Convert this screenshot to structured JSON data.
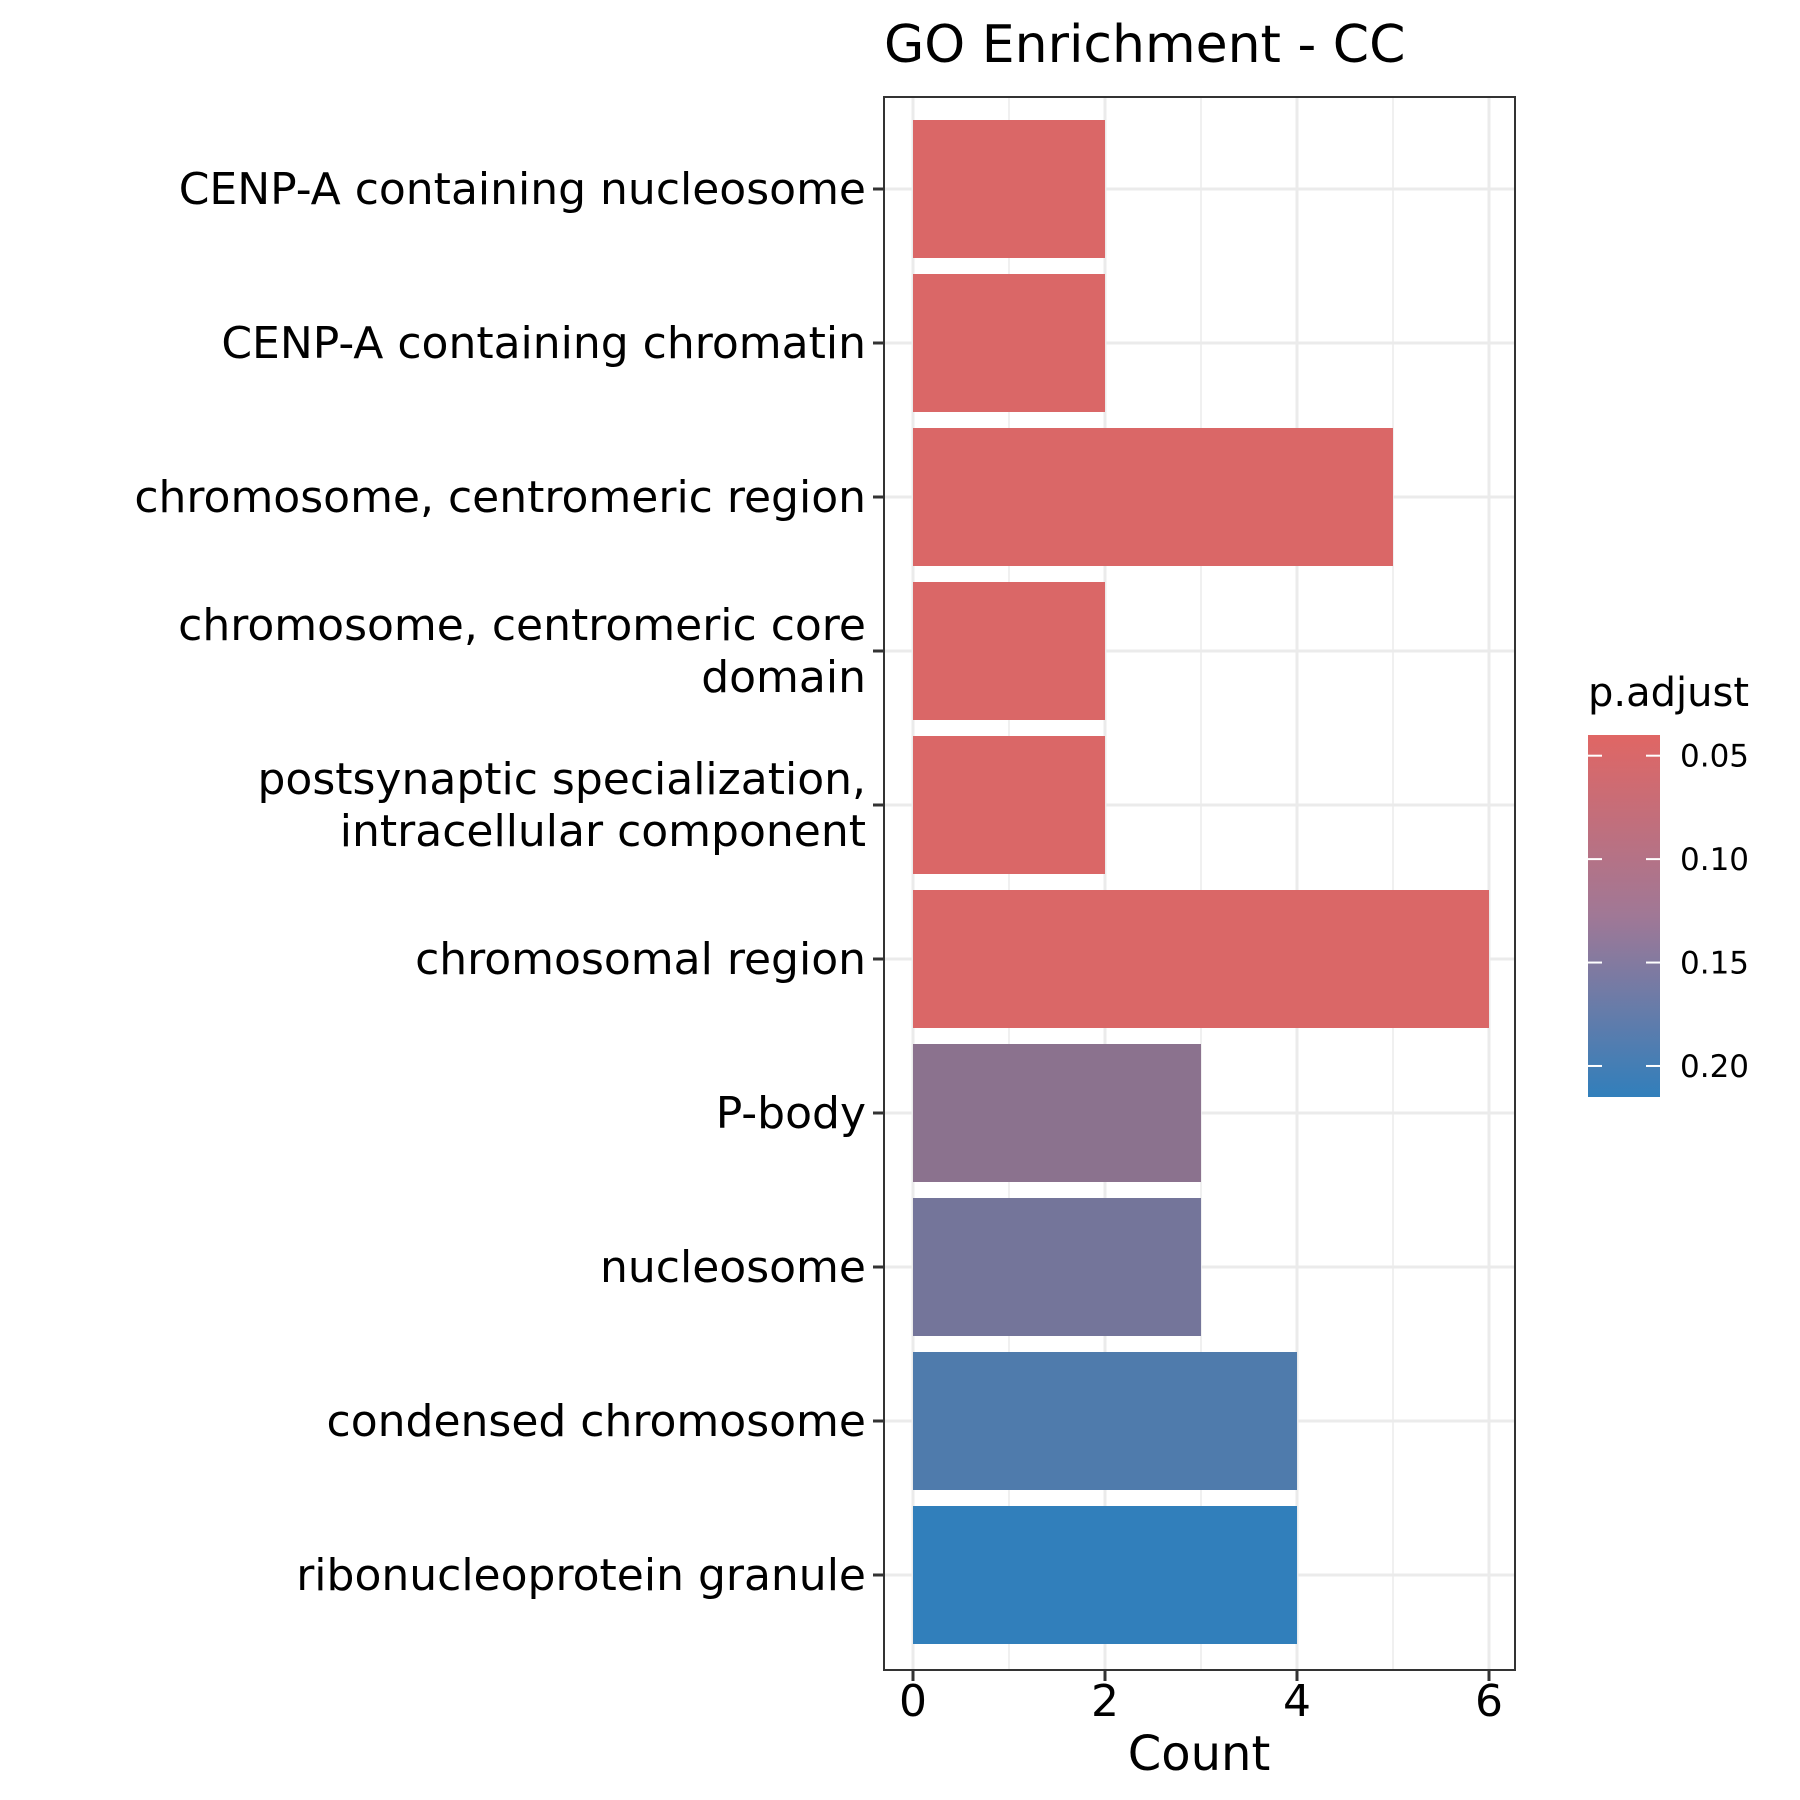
{
  "chart_data": {
    "type": "bar",
    "orientation": "horizontal",
    "title": "GO Enrichment - CC",
    "xlabel": "Count",
    "ylabel": "",
    "xlim": [
      0,
      6.3
    ],
    "xticks": [
      0,
      2,
      4,
      6
    ],
    "grid": true,
    "categories": [
      "CENP-A containing nucleosome",
      "CENP-A containing chromatin",
      "chromosome, centromeric region",
      "chromosome, centromeric core domain",
      "postsynaptic specialization, intracellular component",
      "chromosomal region",
      "P-body",
      "nucleosome",
      "condensed chromosome",
      "ribonucleoprotein granule"
    ],
    "category_lines": [
      [
        "CENP-A containing nucleosome"
      ],
      [
        "CENP-A containing chromatin"
      ],
      [
        "chromosome, centromeric region"
      ],
      [
        "chromosome, centromeric core",
        "domain"
      ],
      [
        "postsynaptic specialization,",
        "intracellular component"
      ],
      [
        "chromosomal region"
      ],
      [
        "P-body"
      ],
      [
        "nucleosome"
      ],
      [
        "condensed chromosome"
      ],
      [
        "ribonucleoprotein granule"
      ]
    ],
    "values": [
      2,
      2,
      5,
      2,
      2,
      6,
      3,
      3,
      4,
      4
    ],
    "p_adjust": [
      0.046,
      0.046,
      0.046,
      0.046,
      0.046,
      0.046,
      0.125,
      0.148,
      0.185,
      0.215
    ],
    "legend": {
      "title": "p.adjust",
      "position": "right",
      "range": [
        0.04,
        0.215
      ],
      "ticks": [
        0.05,
        0.1,
        0.15,
        0.2
      ],
      "tick_labels": [
        "0.05",
        "0.10",
        "0.15",
        "0.20"
      ],
      "color_low": "#e06664",
      "color_high": "#317fbb"
    },
    "colors": {
      "grid": "#ebebeb",
      "panel_border": "#333333",
      "tick": "#333333"
    }
  }
}
